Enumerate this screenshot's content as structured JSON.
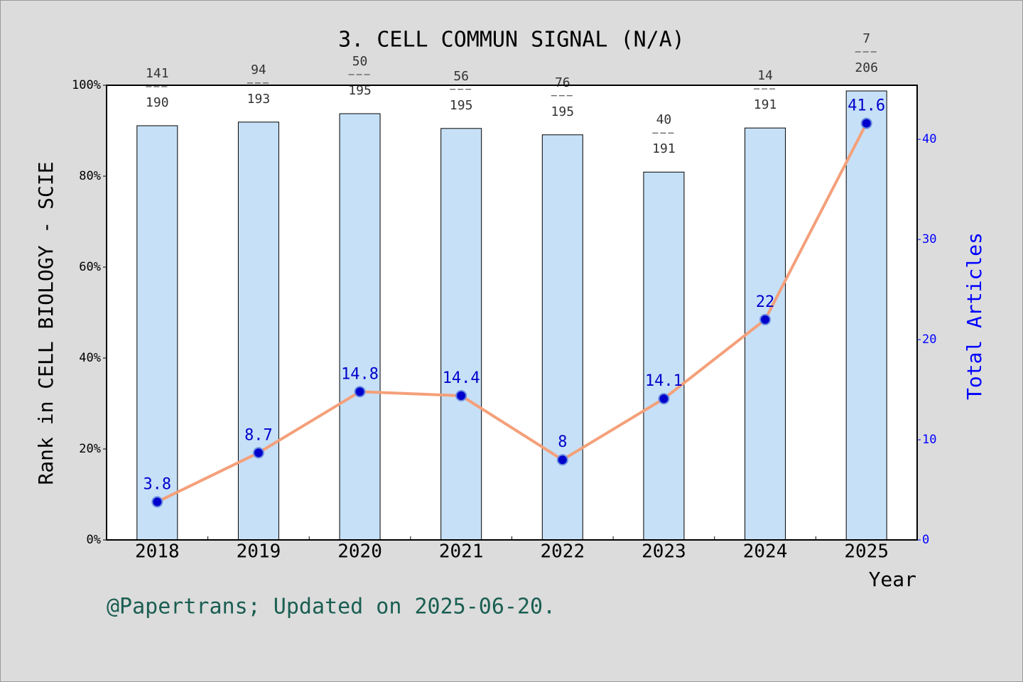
{
  "chart_data": {
    "type": "bar",
    "title": "3. CELL COMMUN SIGNAL (N/A)",
    "ylabel": "Rank in CELL BIOLOGY - SCIE",
    "y2label": "Total Articles",
    "xlabel": "Year",
    "footer": "@Papertrans; Updated on 2025-06-20.",
    "categories": [
      "2018",
      "2019",
      "2020",
      "2021",
      "2022",
      "2023",
      "2024",
      "2025"
    ],
    "values": [
      91.1,
      91.9,
      93.75,
      90.5,
      89.1,
      80.9,
      90.6,
      98.75
    ],
    "color": "#c6e0f7",
    "ranks": [
      141,
      94,
      50,
      56,
      76,
      40,
      14,
      7
    ],
    "totals": [
      190,
      193,
      195,
      195,
      195,
      191,
      191,
      206
    ],
    "ylim": [
      0,
      100
    ],
    "yticks": [
      {
        "value": 0,
        "label": "0%"
      },
      {
        "value": 20,
        "label": "20%"
      },
      {
        "value": 40,
        "label": "40%"
      },
      {
        "value": 60,
        "label": "60%"
      },
      {
        "value": 80,
        "label": "80%"
      },
      {
        "value": 100,
        "label": "100%"
      }
    ],
    "y2lim": [
      0,
      45.4
    ],
    "y2ticks": [
      0,
      10,
      20,
      30,
      40
    ],
    "line": {
      "type": "line",
      "axis": "y2",
      "color": "#f4a07a",
      "values": [
        3.8,
        8.7,
        14.8,
        14.4,
        8,
        14.1,
        22,
        41.6
      ]
    }
  }
}
